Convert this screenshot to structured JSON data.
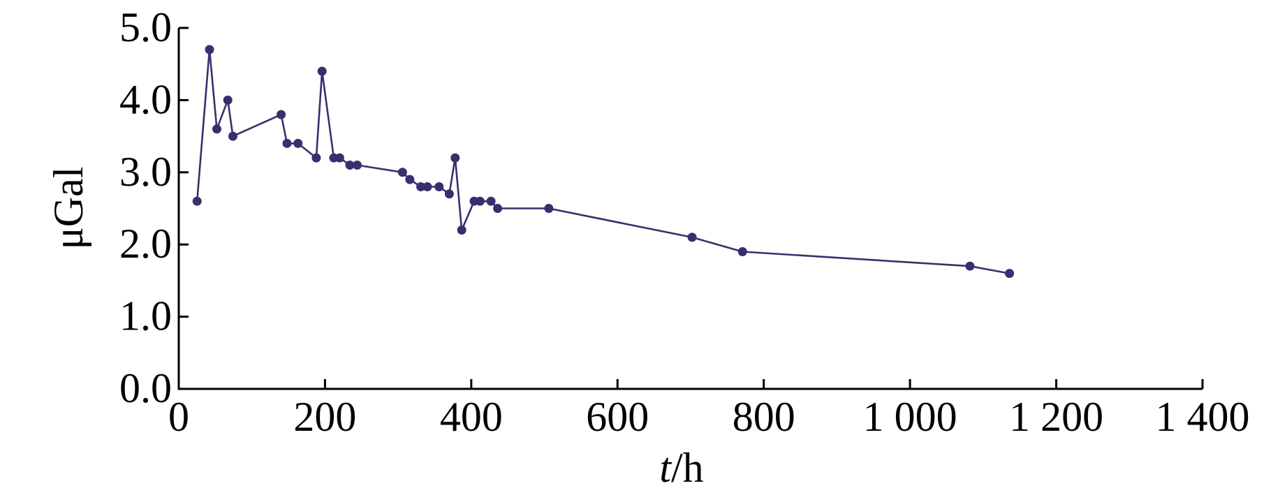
{
  "chart_data": {
    "type": "line",
    "title": "",
    "xlabel_italic": "t",
    "xlabel_rest": "/h",
    "ylabel": "μGal",
    "xlim": [
      0,
      1400
    ],
    "ylim": [
      0,
      5.0
    ],
    "grid": false,
    "x_ticks": [
      0,
      200,
      400,
      600,
      800,
      1000,
      1200,
      1400
    ],
    "x_tick_labels": [
      "0",
      "200",
      "400",
      "600",
      "800",
      "1 000",
      "1 200",
      "1 400"
    ],
    "y_ticks": [
      0,
      1,
      2,
      3,
      4,
      5
    ],
    "y_tick_labels": [
      "0.0",
      "1.0",
      "2.0",
      "3.0",
      "4.0",
      "5.0"
    ],
    "color": "#3a2e6e",
    "series": [
      {
        "x": [
          25,
          42,
          52,
          67,
          74,
          140,
          148,
          163,
          188,
          196,
          212,
          220,
          234,
          244,
          306,
          316,
          331,
          340,
          356,
          370,
          378,
          387,
          404,
          412,
          427,
          436,
          506,
          702,
          771,
          1082,
          1136
        ],
        "y": [
          2.6,
          4.7,
          3.6,
          4.0,
          3.5,
          3.8,
          3.4,
          3.4,
          3.2,
          4.4,
          3.2,
          3.2,
          3.1,
          3.1,
          3.0,
          2.9,
          2.8,
          2.8,
          2.8,
          2.7,
          3.2,
          2.2,
          2.6,
          2.6,
          2.6,
          2.5,
          2.5,
          2.1,
          1.9,
          1.7,
          1.6
        ]
      }
    ]
  }
}
